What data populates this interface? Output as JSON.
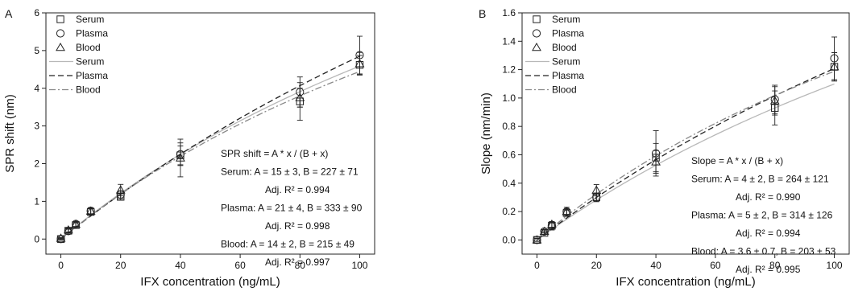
{
  "chart_data": [
    {
      "panel_label": "A",
      "type": "scatter",
      "xlabel": "IFX concentration (ng/mL)",
      "ylabel": "SPR shift (nm)",
      "xlim": [
        -5,
        105
      ],
      "ylim": [
        -0.4,
        6
      ],
      "xticks": [
        0,
        20,
        40,
        60,
        80,
        100
      ],
      "yticks": [
        0,
        1,
        2,
        3,
        4,
        5,
        6
      ],
      "legend_position": "top-left",
      "series": [
        {
          "name": "Serum",
          "kind": "points",
          "marker": "square",
          "x": [
            0,
            2.5,
            5,
            10,
            20,
            40,
            80,
            100
          ],
          "y": [
            0.0,
            0.22,
            0.37,
            0.72,
            1.12,
            2.22,
            3.65,
            4.62
          ],
          "err": [
            0.02,
            0.05,
            0.06,
            0.08,
            0.08,
            0.25,
            0.5,
            0.25
          ]
        },
        {
          "name": "Plasma",
          "kind": "points",
          "marker": "circle",
          "x": [
            0,
            2.5,
            5,
            10,
            20,
            40,
            80,
            100
          ],
          "y": [
            0.0,
            0.21,
            0.4,
            0.75,
            1.18,
            2.25,
            3.9,
            4.88
          ],
          "err": [
            0.02,
            0.05,
            0.07,
            0.08,
            0.1,
            0.3,
            0.4,
            0.5
          ]
        },
        {
          "name": "Blood",
          "kind": "points",
          "marker": "triangle",
          "x": [
            0,
            2.5,
            5,
            10,
            20,
            40,
            80,
            100
          ],
          "y": [
            0.02,
            0.24,
            0.39,
            0.74,
            1.3,
            2.15,
            3.75,
            4.65
          ],
          "err": [
            0.02,
            0.05,
            0.06,
            0.09,
            0.15,
            0.5,
            0.25,
            0.3
          ]
        },
        {
          "name": "Serum",
          "kind": "fit",
          "style": "solid",
          "A": 15,
          "B": 227
        },
        {
          "name": "Plasma",
          "kind": "fit",
          "style": "dash",
          "A": 21,
          "B": 333
        },
        {
          "name": "Blood",
          "kind": "fit",
          "style": "dashdot",
          "A": 14,
          "B": 215
        }
      ],
      "annotations": [
        "SPR shift = A * x / (B + x)",
        "Serum: A = 15 ± 3, B = 227 ± 71",
        "Adj. R² = 0.994",
        "Plasma: A = 21 ± 4, B = 333 ± 90",
        "Adj. R² = 0.998",
        "Blood: A = 14 ± 2, B = 215 ± 49",
        "Adj. R² = 0.997"
      ]
    },
    {
      "panel_label": "B",
      "type": "scatter",
      "xlabel": "IFX concentration (ng/mL)",
      "ylabel": "Slope (nm/min)",
      "xlim": [
        -5,
        105
      ],
      "ylim": [
        -0.1,
        1.6
      ],
      "xticks": [
        0,
        20,
        40,
        60,
        80,
        100
      ],
      "yticks": [
        0.0,
        0.2,
        0.4,
        0.6,
        0.8,
        1.0,
        1.2,
        1.4,
        1.6
      ],
      "legend_position": "top-left",
      "series": [
        {
          "name": "Serum",
          "kind": "points",
          "marker": "square",
          "x": [
            0,
            2.5,
            5,
            10,
            20,
            40,
            80,
            100
          ],
          "y": [
            0.0,
            0.05,
            0.1,
            0.19,
            0.3,
            0.58,
            0.93,
            1.22
          ],
          "err": [
            0.01,
            0.01,
            0.02,
            0.02,
            0.03,
            0.1,
            0.12,
            0.1
          ]
        },
        {
          "name": "Plasma",
          "kind": "points",
          "marker": "circle",
          "x": [
            0,
            2.5,
            5,
            10,
            20,
            40,
            80,
            100
          ],
          "y": [
            0.0,
            0.06,
            0.1,
            0.2,
            0.3,
            0.61,
            0.99,
            1.28
          ],
          "err": [
            0.01,
            0.01,
            0.03,
            0.03,
            0.03,
            0.16,
            0.1,
            0.15
          ]
        },
        {
          "name": "Blood",
          "kind": "points",
          "marker": "triangle",
          "x": [
            0,
            2.5,
            5,
            10,
            20,
            40,
            80,
            100
          ],
          "y": [
            0.0,
            0.06,
            0.11,
            0.2,
            0.35,
            0.55,
            0.98,
            1.22
          ],
          "err": [
            0.01,
            0.01,
            0.02,
            0.02,
            0.04,
            0.08,
            0.1,
            0.1
          ]
        }
      ],
      "fits": [
        {
          "name": "Serum",
          "style": "solid",
          "A": 4,
          "B": 264
        },
        {
          "name": "Plasma",
          "style": "dash",
          "A": 5,
          "B": 314
        },
        {
          "name": "Blood",
          "style": "dashdot",
          "A": 3.6,
          "B": 203
        }
      ],
      "annotations": [
        "Slope = A * x / (B + x)",
        "Serum: A = 4 ± 2, B = 264 ± 121",
        "Adj. R² = 0.990",
        "Plasma: A = 5 ± 2, B = 314 ± 126",
        "Adj. R² = 0.994",
        "Blood: A = 3.6 ± 0.7, B = 203 ± 53",
        "Adj. R² = 0.995"
      ]
    }
  ]
}
